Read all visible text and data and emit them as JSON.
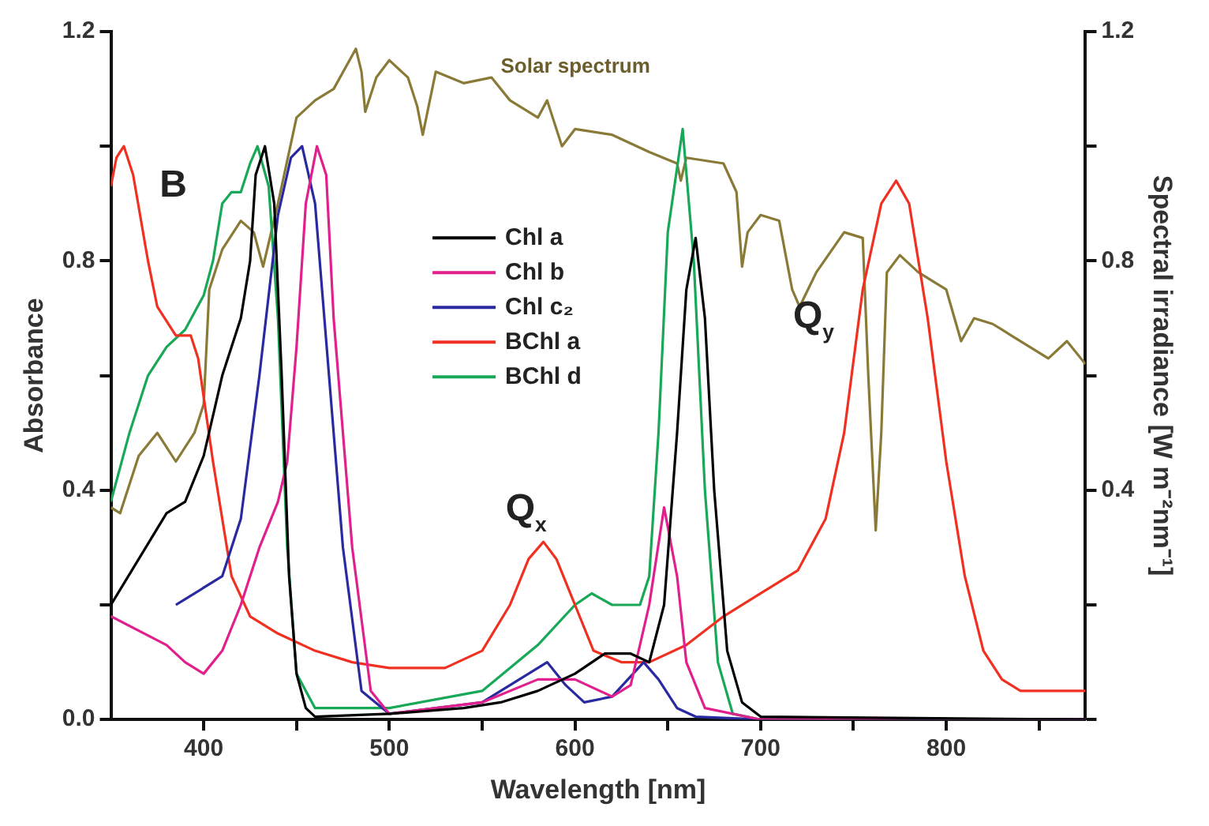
{
  "chart_data": {
    "type": "line",
    "xlabel": "Wavelength [nm]",
    "ylabel": "Absorbance",
    "y2label": "Spectral irradiance [W m⁻²nm⁻¹]",
    "xlim": [
      350,
      875
    ],
    "xticks": [
      400,
      {
        "value": 450,
        "label": null
      },
      500,
      {
        "value": 550,
        "label": null
      },
      600,
      {
        "value": 650,
        "label": null
      },
      700,
      {
        "value": 750,
        "label": null
      },
      800,
      {
        "value": 850,
        "label": null
      }
    ],
    "ylim": [
      0,
      1.2
    ],
    "yticks": [
      {
        "value": 0,
        "label": "0.0"
      },
      {
        "value": 0.2,
        "label": null
      },
      0.4,
      {
        "value": 0.6,
        "label": null
      },
      0.8,
      {
        "value": 1.0,
        "label": null
      },
      1.2
    ],
    "y2lim": [
      0,
      1.2
    ],
    "y2ticks": [
      {
        "value": 0,
        "label": null
      },
      {
        "value": 0.2,
        "label": null
      },
      0.4,
      {
        "value": 0.6,
        "label": null
      },
      0.8,
      {
        "value": 1.0,
        "label": null
      },
      1.2
    ],
    "legend": "top",
    "marker": "none",
    "line_style": "solid",
    "annotations": [
      "B",
      "Q$_{x}$",
      "Q$_{y}$",
      "Solar spectrum"
    ],
    "series": [
      {
        "name": "Chl a",
        "color": "#000000",
        "x": [
          350,
          380,
          390,
          400,
          410,
          420,
          425,
          428,
          433,
          438,
          442,
          446,
          450,
          455,
          460,
          500,
          540,
          560,
          580,
          600,
          616,
          630,
          640,
          648,
          655,
          660,
          665,
          670,
          675,
          682,
          690,
          700,
          875
        ],
        "values": [
          0.2,
          0.36,
          0.38,
          0.46,
          0.6,
          0.7,
          0.8,
          0.95,
          1.0,
          0.9,
          0.6,
          0.25,
          0.08,
          0.02,
          0.005,
          0.01,
          0.02,
          0.03,
          0.05,
          0.08,
          0.115,
          0.115,
          0.1,
          0.2,
          0.5,
          0.75,
          0.84,
          0.7,
          0.4,
          0.12,
          0.03,
          0.005,
          0
        ]
      },
      {
        "name": "Chl b",
        "color": "#e0208c",
        "x": [
          350,
          380,
          390,
          400,
          410,
          420,
          430,
          440,
          445,
          450,
          455,
          461,
          466,
          470,
          480,
          490,
          500,
          550,
          580,
          600,
          620,
          630,
          640,
          648,
          655,
          660,
          670,
          700,
          875
        ],
        "values": [
          0.18,
          0.13,
          0.1,
          0.08,
          0.12,
          0.2,
          0.3,
          0.38,
          0.45,
          0.65,
          0.9,
          1.0,
          0.95,
          0.7,
          0.3,
          0.05,
          0.01,
          0.03,
          0.07,
          0.07,
          0.04,
          0.06,
          0.2,
          0.37,
          0.25,
          0.1,
          0.02,
          0,
          0
        ]
      },
      {
        "name": "Chl c₂",
        "color": "#2a2aa0",
        "x": [
          385,
          400,
          410,
          420,
          430,
          440,
          447,
          453,
          460,
          465,
          475,
          485,
          500,
          550,
          570,
          585,
          595,
          605,
          620,
          637,
          645,
          655,
          665,
          700,
          875
        ],
        "values": [
          0.2,
          0.23,
          0.25,
          0.35,
          0.6,
          0.88,
          0.98,
          1.0,
          0.9,
          0.7,
          0.3,
          0.05,
          0.01,
          0.03,
          0.07,
          0.1,
          0.06,
          0.03,
          0.04,
          0.1,
          0.07,
          0.02,
          0.005,
          0,
          0
        ]
      },
      {
        "name": "BChl a",
        "color": "#f03020",
        "x": [
          350,
          353,
          357,
          362,
          370,
          375,
          385,
          393,
          397,
          405,
          415,
          425,
          440,
          460,
          480,
          500,
          530,
          550,
          565,
          575,
          583,
          590,
          600,
          610,
          625,
          640,
          660,
          680,
          700,
          720,
          735,
          745,
          755,
          765,
          773,
          780,
          790,
          800,
          810,
          820,
          830,
          840,
          875
        ],
        "values": [
          0.93,
          0.98,
          1.0,
          0.95,
          0.8,
          0.72,
          0.67,
          0.67,
          0.63,
          0.45,
          0.25,
          0.18,
          0.15,
          0.12,
          0.1,
          0.09,
          0.09,
          0.12,
          0.2,
          0.28,
          0.31,
          0.28,
          0.2,
          0.12,
          0.1,
          0.1,
          0.13,
          0.18,
          0.22,
          0.26,
          0.35,
          0.5,
          0.75,
          0.9,
          0.94,
          0.9,
          0.7,
          0.45,
          0.25,
          0.12,
          0.07,
          0.05,
          0.05
        ]
      },
      {
        "name": "BChl d",
        "color": "#18a858",
        "x": [
          350,
          360,
          370,
          380,
          390,
          400,
          405,
          410,
          415,
          420,
          425,
          429,
          435,
          440,
          445,
          450,
          460,
          500,
          550,
          580,
          600,
          609,
          620,
          635,
          640,
          645,
          650,
          658,
          664,
          670,
          677,
          685,
          700,
          875
        ],
        "values": [
          0.38,
          0.5,
          0.6,
          0.65,
          0.68,
          0.74,
          0.8,
          0.9,
          0.92,
          0.92,
          0.97,
          1.0,
          0.93,
          0.7,
          0.3,
          0.08,
          0.02,
          0.02,
          0.05,
          0.13,
          0.2,
          0.22,
          0.2,
          0.2,
          0.25,
          0.5,
          0.85,
          1.03,
          0.8,
          0.4,
          0.1,
          0.01,
          0,
          0
        ]
      },
      {
        "color": "#8a7a38",
        "axis": "y2",
        "x": [
          350,
          355,
          365,
          375,
          385,
          395,
          400,
          403,
          410,
          420,
          427,
          432,
          440,
          450,
          460,
          470,
          482,
          485,
          487,
          493,
          500,
          510,
          515,
          518,
          525,
          540,
          555,
          565,
          580,
          585,
          593,
          600,
          620,
          640,
          655,
          657,
          660,
          680,
          687,
          690,
          693,
          700,
          710,
          717,
          721,
          730,
          745,
          755,
          758,
          762,
          765,
          768,
          775,
          785,
          800,
          808,
          815,
          825,
          835,
          845,
          855,
          865,
          875
        ],
        "values": [
          0.37,
          0.36,
          0.46,
          0.5,
          0.45,
          0.5,
          0.55,
          0.75,
          0.82,
          0.87,
          0.85,
          0.79,
          0.9,
          1.05,
          1.08,
          1.1,
          1.17,
          1.13,
          1.06,
          1.12,
          1.15,
          1.12,
          1.07,
          1.02,
          1.13,
          1.11,
          1.12,
          1.08,
          1.05,
          1.08,
          1.0,
          1.03,
          1.02,
          0.99,
          0.97,
          0.94,
          0.98,
          0.97,
          0.92,
          0.79,
          0.85,
          0.88,
          0.87,
          0.75,
          0.72,
          0.78,
          0.85,
          0.84,
          0.6,
          0.33,
          0.5,
          0.78,
          0.81,
          0.78,
          0.75,
          0.66,
          0.7,
          0.69,
          0.67,
          0.65,
          0.63,
          0.66,
          0.62
        ]
      }
    ]
  }
}
